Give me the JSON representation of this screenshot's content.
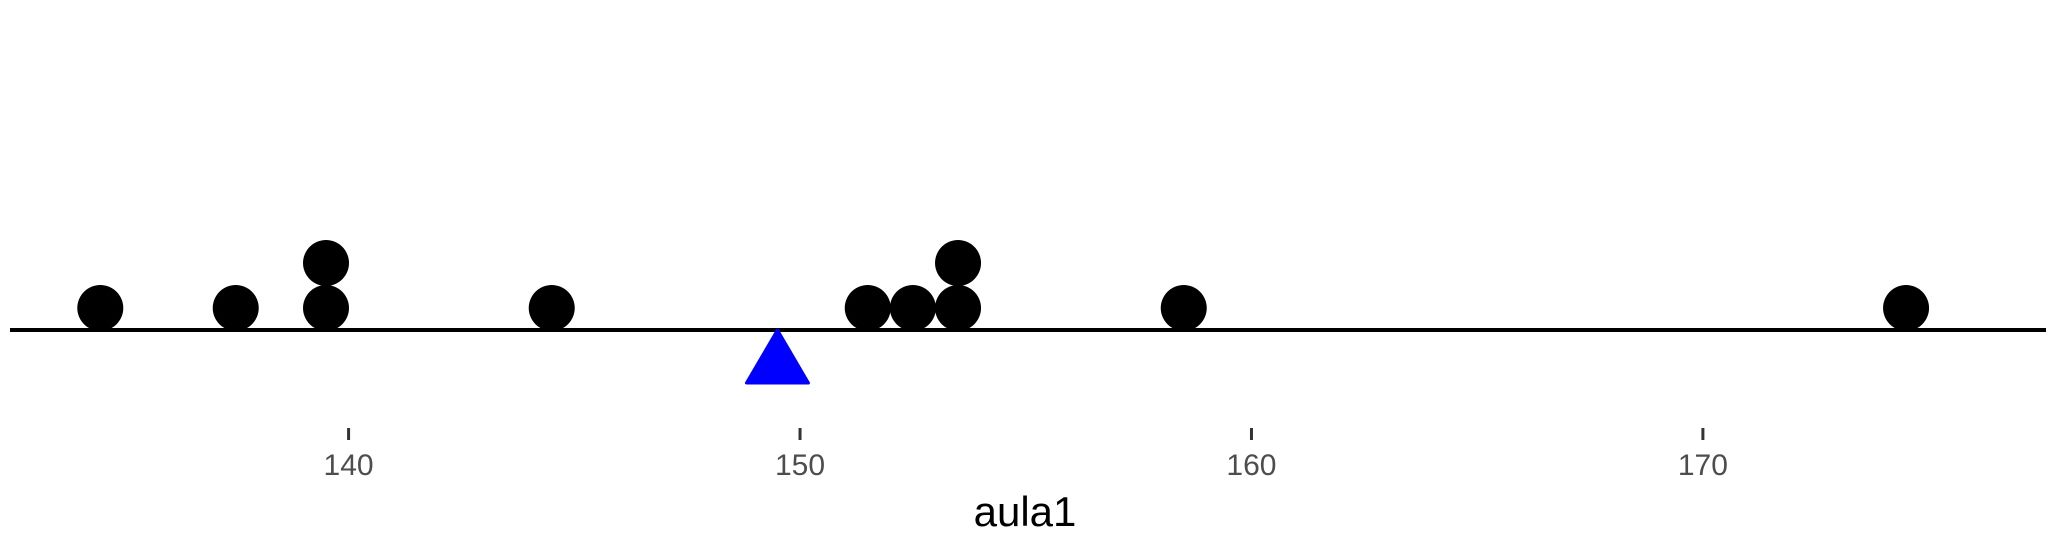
{
  "chart_data": {
    "type": "scatter",
    "subtype": "dot-plot",
    "xlabel": "aula1",
    "x_ticks": [
      140,
      150,
      160,
      170
    ],
    "xlim": [
      132.5,
      177.6
    ],
    "grid": false,
    "points": [
      {
        "x": 134.5,
        "stack": 0
      },
      {
        "x": 137.5,
        "stack": 0
      },
      {
        "x": 139.5,
        "stack": 0
      },
      {
        "x": 139.5,
        "stack": 1
      },
      {
        "x": 144.5,
        "stack": 0
      },
      {
        "x": 151.5,
        "stack": 0
      },
      {
        "x": 152.5,
        "stack": 0
      },
      {
        "x": 153.5,
        "stack": 0
      },
      {
        "x": 153.5,
        "stack": 1
      },
      {
        "x": 158.5,
        "stack": 0
      },
      {
        "x": 174.5,
        "stack": 0
      }
    ],
    "point_color": "#000000",
    "mean_marker": {
      "x": 149.5,
      "shape": "triangle",
      "color": "#0000ff"
    }
  }
}
